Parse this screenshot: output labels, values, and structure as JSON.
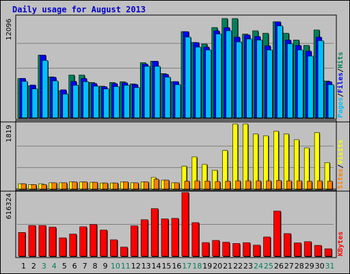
{
  "title": "Daily usage for August 2013",
  "colors": {
    "background": "#c0c0c0",
    "title": "#0000c8",
    "hits": "#00805c",
    "files": "#0000ff",
    "pages": "#00c0ff",
    "visits": "#ffff00",
    "sites": "#ff8000",
    "kbytes": "#ff0000",
    "weekday": "#000000",
    "weekend": "#00805c",
    "separator": "#000000"
  },
  "chart_data": {
    "type": "bar",
    "categories": [
      "1",
      "2",
      "3",
      "4",
      "5",
      "6",
      "7",
      "8",
      "9",
      "10",
      "11",
      "12",
      "13",
      "14",
      "15",
      "16",
      "17",
      "18",
      "19",
      "20",
      "21",
      "22",
      "23",
      "24",
      "25",
      "26",
      "27",
      "28",
      "29",
      "30",
      "31"
    ],
    "weekend_days": [
      "3",
      "4",
      "10",
      "11",
      "17",
      "18",
      "24",
      "25",
      "31"
    ],
    "panels": [
      {
        "name": "hits-files-pages",
        "max_label": "12096",
        "ylim": [
          0,
          12096
        ],
        "legend": [
          {
            "label": "Pages",
            "color": "#00c0ff"
          },
          {
            "label": "/",
            "color": "#000000"
          },
          {
            "label": "Files",
            "color": "#0000ff"
          },
          {
            "label": "/",
            "color": "#000000"
          },
          {
            "label": "Hits",
            "color": "#00805c"
          }
        ],
        "series": [
          {
            "name": "Hits",
            "values": [
              4780,
              3890,
              7640,
              4990,
              3300,
              5210,
              5210,
              4310,
              3850,
              4310,
              4400,
              4130,
              6720,
              6900,
              5390,
              4400,
              10500,
              9180,
              9000,
              11000,
              12096,
              12096,
              10200,
              10600,
              10300,
              11700,
              10300,
              9480,
              8830,
              10700,
              4490
            ]
          },
          {
            "name": "Files",
            "values": [
              4810,
              4000,
              7640,
              4950,
              3420,
              4450,
              4800,
              4180,
              3790,
              4180,
              4270,
              4080,
              6540,
              6900,
              5300,
              4420,
              10500,
              9170,
              8620,
              10600,
              11000,
              9840,
              10100,
              9910,
              8780,
              11700,
              9480,
              8830,
              8130,
              9840,
              4400
            ]
          },
          {
            "name": "Pages",
            "values": [
              4440,
              3520,
              6990,
              4500,
              2890,
              3970,
              4400,
              3850,
              3520,
              3800,
              3970,
              3690,
              6270,
              6270,
              4960,
              4040,
              9840,
              8610,
              8260,
              10200,
              10600,
              9240,
              9600,
              9470,
              8260,
              11200,
              9010,
              8260,
              7510,
              9390,
              4040
            ]
          }
        ]
      },
      {
        "name": "visits-sites",
        "max_label": "1819",
        "ylim": [
          0,
          1819
        ],
        "legend": [
          {
            "label": "Sites",
            "color": "#ff8000"
          },
          {
            "label": "/",
            "color": "#000000"
          },
          {
            "label": "Visits",
            "color": "#ffff00"
          }
        ],
        "series": [
          {
            "name": "Visits",
            "values": [
              150,
              125,
              150,
              175,
              175,
              200,
              200,
              190,
              170,
              170,
              200,
              175,
              200,
              325,
              250,
              175,
              640,
              900,
              690,
              530,
              1080,
              1819,
              1819,
              1540,
              1490,
              1620,
              1540,
              1380,
              1150,
              1580,
              740
            ]
          },
          {
            "name": "Sites",
            "values": [
              150,
              125,
              125,
              175,
              175,
              200,
              200,
              190,
              170,
              170,
              200,
              175,
              200,
              275,
              250,
              175,
              220,
              230,
              225,
              210,
              220,
              230,
              230,
              230,
              230,
              240,
              230,
              230,
              220,
              230,
              220
            ]
          }
        ]
      },
      {
        "name": "kbytes",
        "max_label": "616324",
        "ylim": [
          0,
          616324
        ],
        "legend": [
          {
            "label": "KBytes",
            "color": "#ff0000"
          }
        ],
        "series": [
          {
            "name": "KBytes",
            "values": [
              230000,
              297000,
              297000,
              281000,
              178000,
              214000,
              285000,
              307000,
              253000,
              159000,
              88000,
              294000,
              353000,
              460000,
              361000,
              366000,
              616324,
              325000,
              132000,
              153000,
              135000,
              123000,
              131000,
              107000,
              186000,
              437000,
              219000,
              129000,
              141000,
              105000,
              72000
            ]
          }
        ]
      }
    ]
  }
}
